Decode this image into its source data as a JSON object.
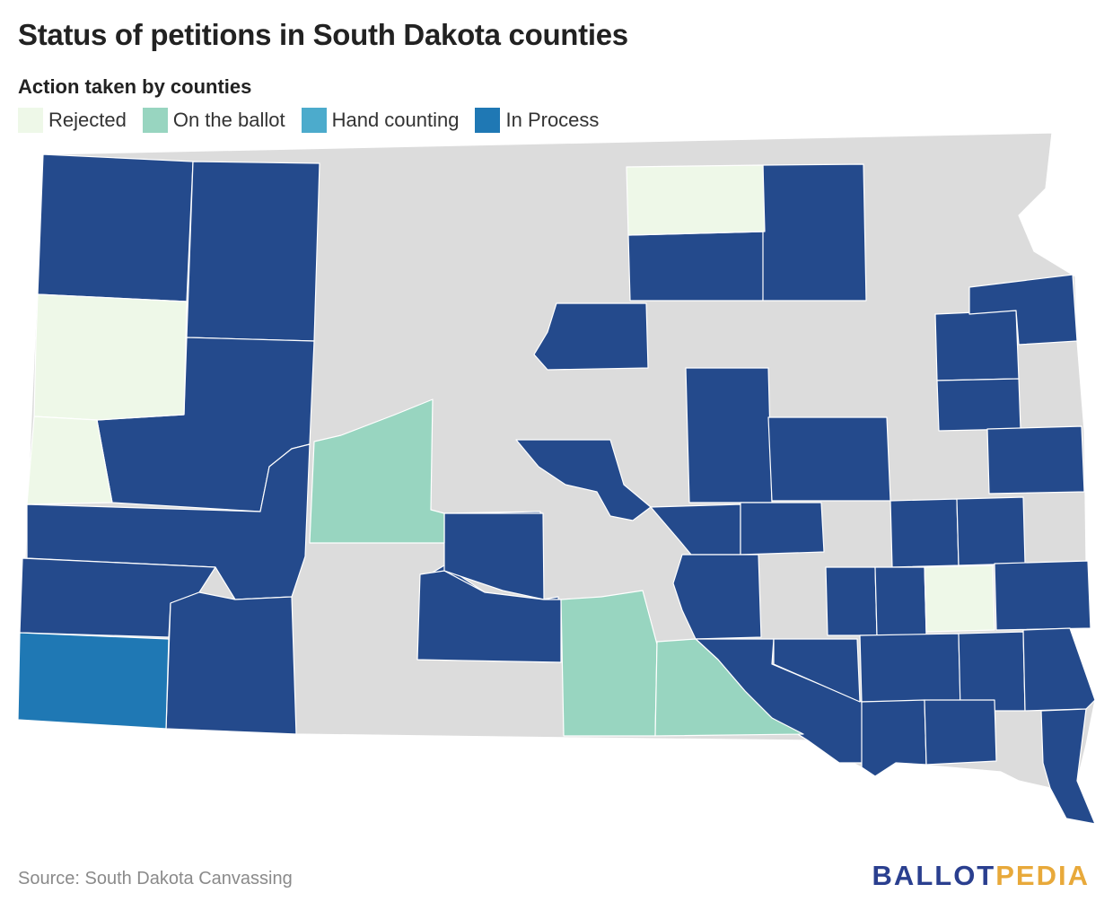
{
  "title": "Status of petitions in South Dakota counties",
  "legend": {
    "heading": "Action taken by counties",
    "items": [
      {
        "label": "Rejected",
        "color": "#eef8e8"
      },
      {
        "label": "On the ballot",
        "color": "#98d5c0"
      },
      {
        "label": "Hand counting",
        "color": "#4cabcc"
      },
      {
        "label": "In Process",
        "color": "#1f78b4"
      }
    ]
  },
  "colors": {
    "in_process_fill": "#244a8c",
    "no_action": "#dcdcdc",
    "border": "#ffffff"
  },
  "source": "Source: South Dakota Canvassing",
  "logo": {
    "part1": "BALLOT",
    "part2": "PEDIA"
  }
}
